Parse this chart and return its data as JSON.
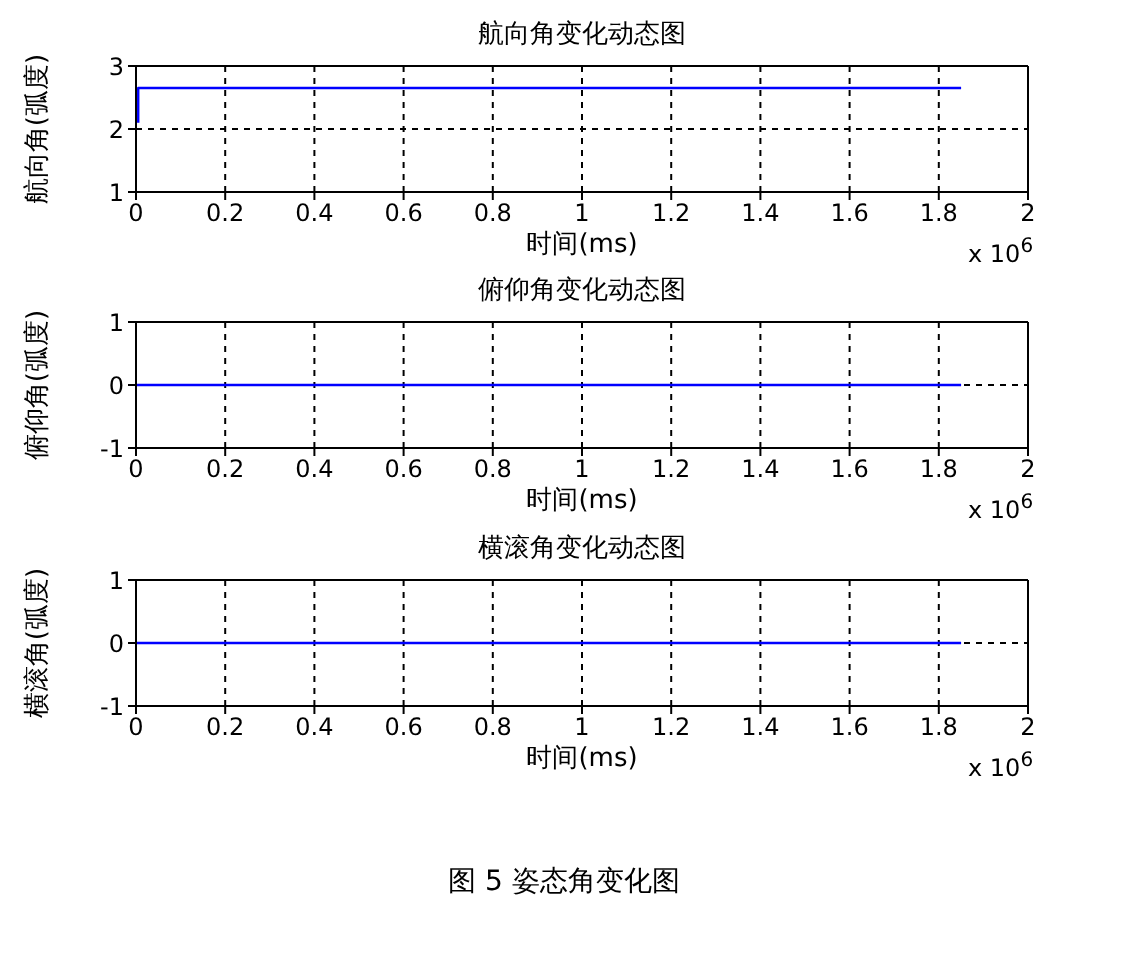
{
  "chart_data": [
    {
      "type": "line",
      "title": "航向角变化动态图",
      "xlabel": "时间(ms)",
      "ylabel": "航向角(弧度)",
      "x": [
        0.005,
        0.005,
        1.85
      ],
      "series": [
        {
          "color": "#0000ff",
          "values": [
            2.1,
            2.65,
            2.65
          ]
        }
      ],
      "xlim": [
        0,
        2
      ],
      "xticks": [
        0,
        0.2,
        0.4,
        0.6,
        0.8,
        1,
        1.2,
        1.4,
        1.6,
        1.8,
        2
      ],
      "ylim": [
        1,
        3
      ],
      "yticks": [
        1,
        2,
        3
      ],
      "grid": true,
      "annotations": [
        "x 10$^{6}$"
      ]
    },
    {
      "type": "line",
      "title": "俯仰角变化动态图",
      "xlabel": "时间(ms)",
      "ylabel": "俯仰角(弧度)",
      "x": [
        0,
        1.85
      ],
      "series": [
        {
          "color": "#0000ff",
          "values": [
            0,
            0
          ]
        }
      ],
      "xlim": [
        0,
        2
      ],
      "xticks": [
        0,
        0.2,
        0.4,
        0.6,
        0.8,
        1,
        1.2,
        1.4,
        1.6,
        1.8,
        2
      ],
      "ylim": [
        -1,
        1
      ],
      "yticks": [
        -1,
        0,
        1
      ],
      "grid": true,
      "annotations": [
        "x 10$^{6}$"
      ]
    },
    {
      "type": "line",
      "title": "横滚角变化动态图",
      "xlabel": "时间(ms)",
      "ylabel": "横滚角(弧度)",
      "x": [
        0,
        1.85
      ],
      "series": [
        {
          "color": "#0000ff",
          "values": [
            0,
            0
          ]
        }
      ],
      "xlim": [
        0,
        2
      ],
      "xticks": [
        0,
        0.2,
        0.4,
        0.6,
        0.8,
        1,
        1.2,
        1.4,
        1.6,
        1.8,
        2
      ],
      "ylim": [
        -1,
        1
      ],
      "yticks": [
        -1,
        0,
        1
      ],
      "grid": true,
      "annotations": [
        "x 10$^{6}$",
        "图 5  姿态角变化图"
      ]
    }
  ]
}
